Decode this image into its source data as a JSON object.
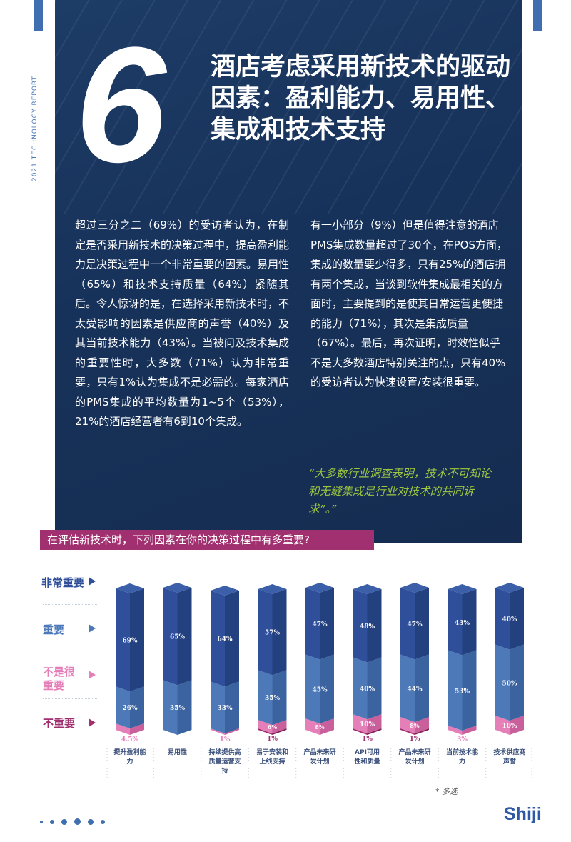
{
  "vertical_label": "2021 TECHNOLOGY REPORT",
  "hero": {
    "number": "6",
    "title": "酒店考虑采用新技术的驱动因素：盈利能力、易用性、集成和技术支持"
  },
  "body_left": "超过三分之二（69%）的受访者认为，在制定是否采用新技术的决策过程中，提高盈利能力是决策过程中一个非常重要的因素。易用性（65%）和技术支持质量（64%）紧随其后。令人惊讶的是，在选择采用新技术时，不太受影响的因素是供应商的声誉（40%）及其当前技术能力（43%）。当被问及技术集成的重要性时，大多数（71%）认为非常重要，只有1%认为集成不是必需的。每家酒店的PMS集成的平均数量为1~5个（53%），21%的酒店经营者有6到10个集成。",
  "body_right": "有一小部分（9%）但是值得注意的酒店PMS集成数量超过了30个，在POS方面，集成的数量要少得多，只有25%的酒店拥有两个集成，当谈到软件集成最相关的方面时，主要提到的是使其日常运营更便捷的能力（71%），其次是集成质量（67%）。最后，再次证明，时效性似乎不是大多数酒店特别关注的点，只有40%的受访者认为快速设置/安装很重要。",
  "quote": "“大多数行业调查表明，技术不可知论和无缝集成是行业对技术的共同诉求”。”",
  "legend": {
    "very_important": "非常重要",
    "important": "重要",
    "not_very_important": "不是很重要",
    "not_important": "不重要"
  },
  "colors": {
    "very_important": "#2f4f9a",
    "important": "#4d79b8",
    "not_very_important": "#e57fb8",
    "not_important": "#a0306f"
  },
  "chart_data": {
    "type": "bar",
    "stacked": true,
    "title": "在评估新技术时，下列因素在你的决策过程中有多重要?",
    "categories": [
      "提升盈利能力",
      "易用性",
      "持续提供高质量运营支持",
      "易于安装和上线支持",
      "产品未来研发计划",
      "API可用性和质量",
      "产品未来研发计划",
      "当前技术能力",
      "技术供应商声誉"
    ],
    "series": [
      {
        "name": "非常重要",
        "values": [
          69,
          65,
          64,
          57,
          47,
          48,
          47,
          43,
          40
        ],
        "labels": [
          "69%",
          "65%",
          "64%",
          "57%",
          "47%",
          "48%",
          "47%",
          "43%",
          "40%"
        ]
      },
      {
        "name": "重要",
        "values": [
          26,
          35,
          33,
          35,
          45,
          40,
          44,
          53,
          50
        ],
        "labels": [
          "26%",
          "35%",
          "33%",
          "35%",
          "45%",
          "40%",
          "44%",
          "53%",
          "50%"
        ]
      },
      {
        "name": "不是很重要",
        "values": [
          4.5,
          0,
          1,
          6,
          8,
          10,
          8,
          3,
          10
        ],
        "labels": [
          "4.5%",
          "",
          "1%",
          "6%",
          "8%",
          "10%",
          "8%",
          "3%",
          "10%"
        ]
      },
      {
        "name": "不重要",
        "values": [
          0,
          0,
          0,
          1,
          0,
          1,
          1,
          0,
          0
        ],
        "labels": [
          "",
          "",
          "",
          "1%",
          "",
          "1%",
          "1%",
          "",
          ""
        ]
      }
    ]
  },
  "footnote": "* 多选",
  "logo": "Shiji"
}
